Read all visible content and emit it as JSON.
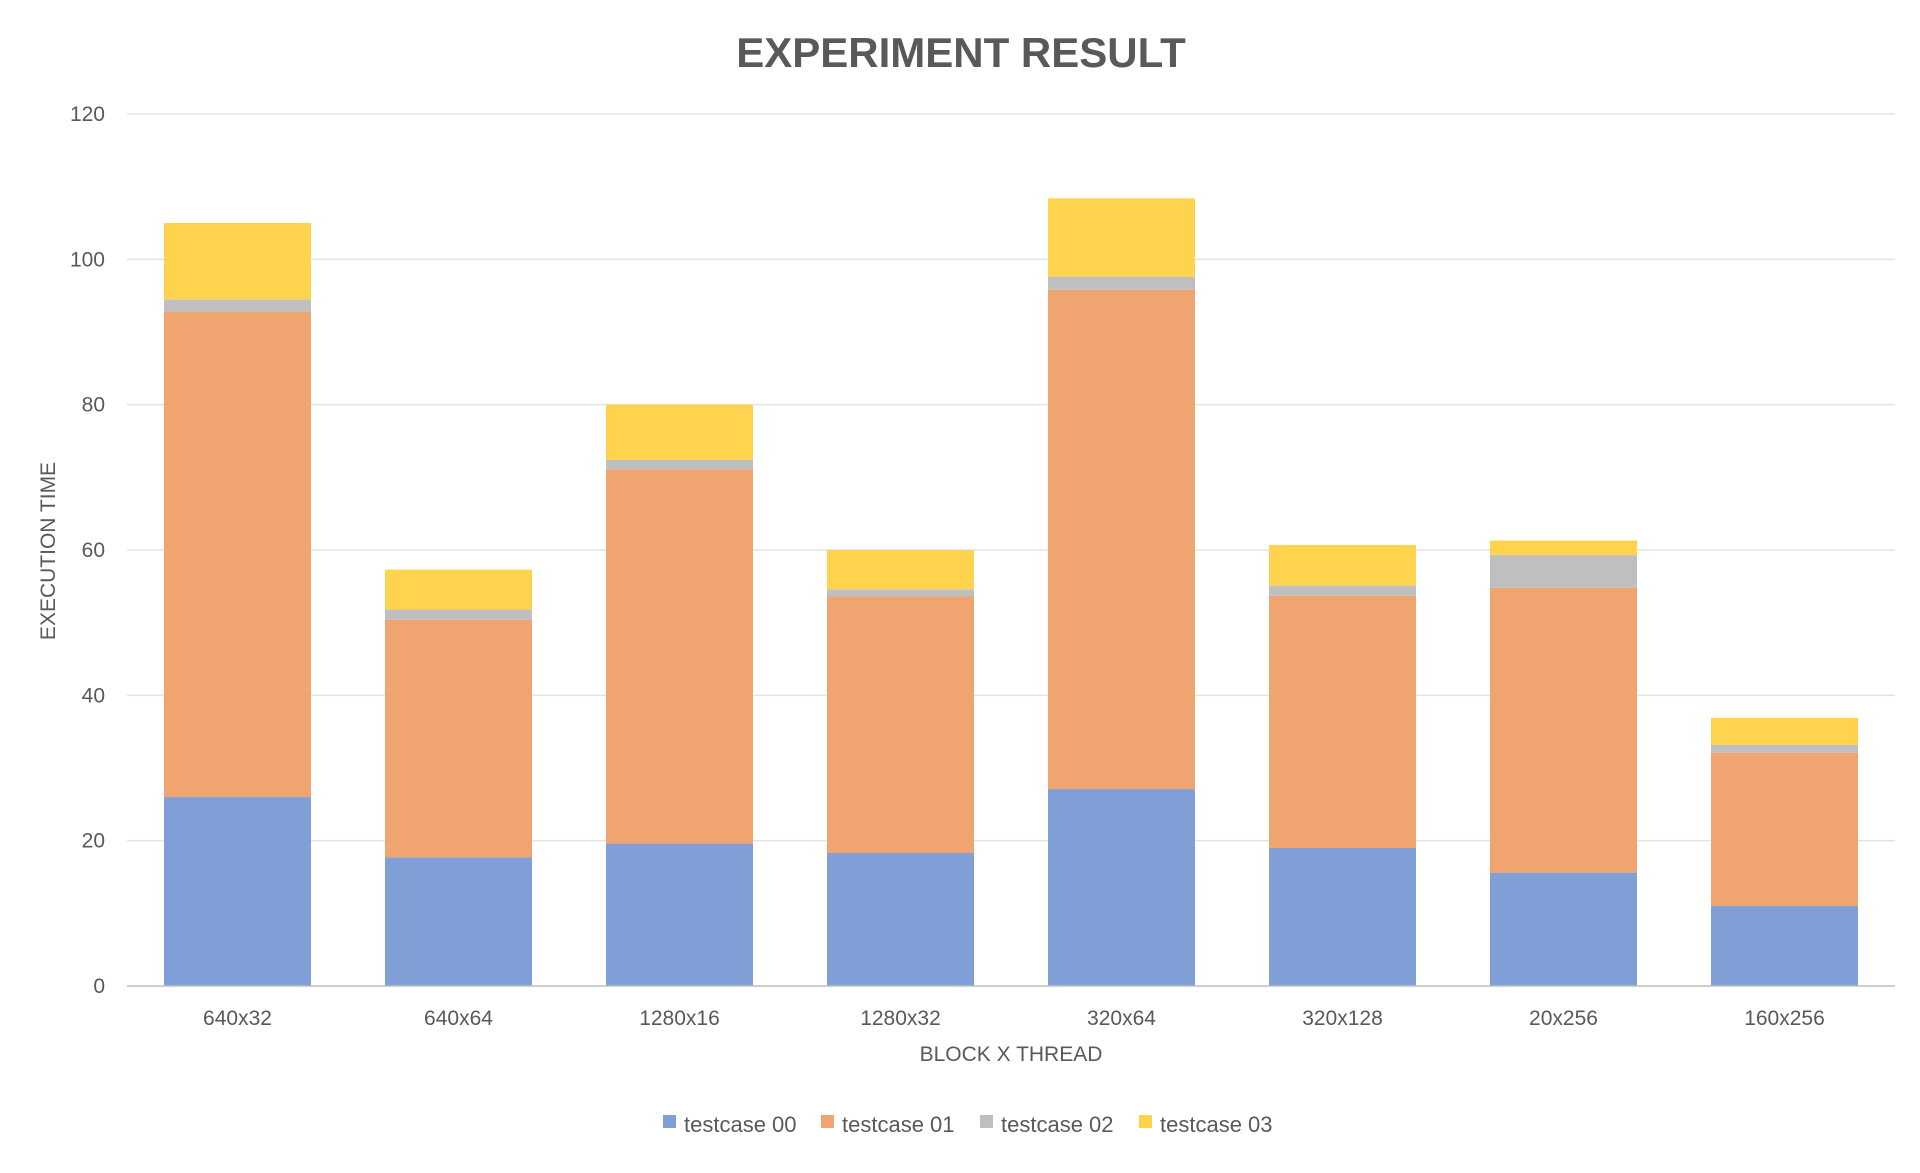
{
  "chart_data": {
    "type": "bar",
    "stacked": true,
    "title": "EXPERIMENT RESULT",
    "xlabel": "BLOCK X THREAD",
    "ylabel": "EXECUTION TIME",
    "ylim": [
      0,
      120
    ],
    "yticks": [
      "0",
      "20",
      "40",
      "60",
      "80",
      "100",
      "120"
    ],
    "grid": true,
    "legend_position": "bottom",
    "categories": [
      "640x32",
      "640x64",
      "1280x16",
      "1280x32",
      "320x64",
      "320x128",
      "20x256",
      "160x256"
    ],
    "series": [
      {
        "name": "testcase 00",
        "color": "#7f9fd6",
        "values": [
          26,
          17.7,
          19.6,
          18.3,
          27.1,
          19,
          15.6,
          11
        ]
      },
      {
        "name": "testcase 01",
        "color": "#f0a46f",
        "values": [
          66.8,
          32.7,
          51.5,
          35.3,
          68.7,
          34.7,
          39.2,
          21.1
        ]
      },
      {
        "name": "testcase 02",
        "color": "#bfbfbf",
        "values": [
          1.7,
          1.4,
          1.3,
          1,
          1.8,
          1.4,
          4.5,
          1.1
        ]
      },
      {
        "name": "testcase 03",
        "color": "#ffd34e",
        "values": [
          10.5,
          5.5,
          7.6,
          5.4,
          10.8,
          5.6,
          2,
          3.7
        ]
      }
    ]
  }
}
